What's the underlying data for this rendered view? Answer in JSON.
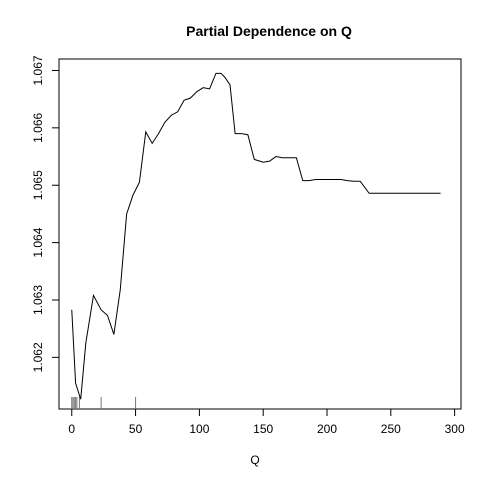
{
  "chart_data": {
    "type": "line",
    "title": "Partial Dependence on Q",
    "xlabel": "Q",
    "ylabel": "",
    "xlim": [
      -10,
      305
    ],
    "ylim": [
      1.0611,
      1.0672
    ],
    "xticks": [
      0,
      50,
      100,
      150,
      200,
      250,
      300
    ],
    "yticks": [
      1.062,
      1.063,
      1.064,
      1.065,
      1.066,
      1.067
    ],
    "ytick_labels": [
      "1.062",
      "1.063",
      "1.064",
      "1.065",
      "1.066",
      "1.067"
    ],
    "grid": false,
    "legend": "none",
    "line_color": "#000000",
    "series": [
      {
        "x": [
          0,
          3,
          7,
          11,
          17,
          23,
          28,
          33,
          38,
          43,
          48,
          53,
          58,
          63,
          68,
          73,
          78,
          83,
          88,
          93,
          98,
          103,
          108,
          113,
          117,
          120,
          124,
          128,
          133,
          138,
          143,
          150,
          155,
          160,
          165,
          170,
          176,
          181,
          186,
          191,
          196,
          201,
          206,
          211,
          216,
          221,
          226,
          233,
          238,
          243,
          248,
          253,
          258,
          263,
          268,
          273,
          278,
          283,
          289
        ],
        "y": [
          1.06283,
          1.06155,
          1.06127,
          1.06225,
          1.06308,
          1.06283,
          1.06273,
          1.0624,
          1.06318,
          1.0645,
          1.06483,
          1.06505,
          1.06593,
          1.06573,
          1.0659,
          1.0661,
          1.06622,
          1.06628,
          1.06648,
          1.06652,
          1.06663,
          1.0667,
          1.06668,
          1.06695,
          1.06695,
          1.06688,
          1.06675,
          1.0659,
          1.0659,
          1.06588,
          1.06545,
          1.0654,
          1.06542,
          1.0655,
          1.06548,
          1.06548,
          1.06548,
          1.06508,
          1.06508,
          1.0651,
          1.0651,
          1.0651,
          1.0651,
          1.0651,
          1.06508,
          1.06507,
          1.06507,
          1.06486,
          1.06486,
          1.06486,
          1.06486,
          1.06486,
          1.06486,
          1.06486,
          1.06486,
          1.06486,
          1.06486,
          1.06486,
          1.06486
        ]
      }
    ],
    "rug_x": [
      0,
      1,
      2,
      3,
      4,
      6,
      23,
      50
    ]
  }
}
